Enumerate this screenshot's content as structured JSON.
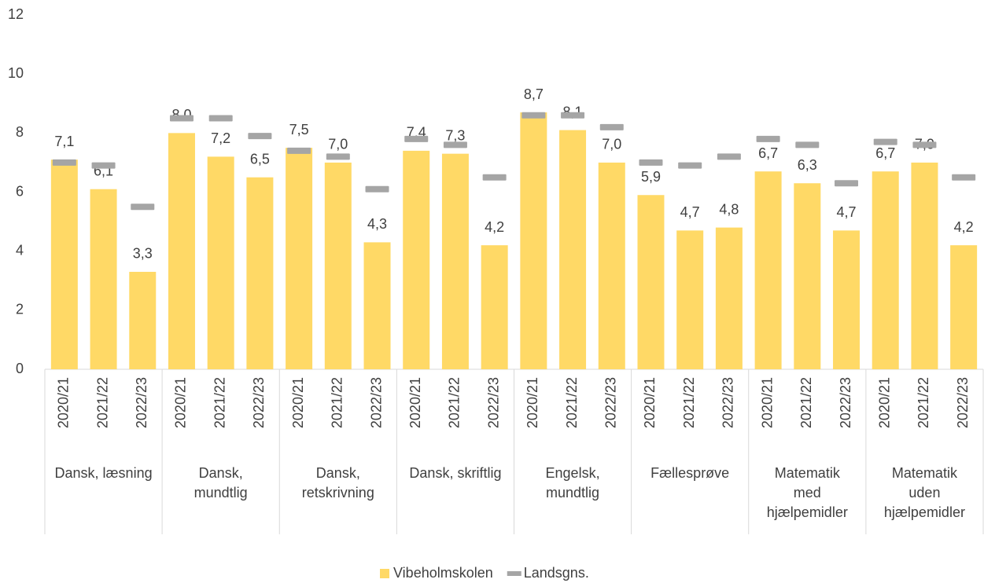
{
  "chart_data": {
    "type": "bar",
    "categories": [
      "2020/21",
      "2021/22",
      "2022/23",
      "2020/21",
      "2021/22",
      "2022/23",
      "2020/21",
      "2021/22",
      "2022/23",
      "2020/21",
      "2021/22",
      "2022/23",
      "2020/21",
      "2021/22",
      "2022/23",
      "2020/21",
      "2021/22",
      "2022/23",
      "2020/21",
      "2021/22",
      "2022/23",
      "2020/21",
      "2021/22",
      "2022/23"
    ],
    "group_labels": [
      [
        "Dansk, læsning"
      ],
      [
        "Dansk,",
        "mundtlig"
      ],
      [
        "Dansk,",
        "retskrivning"
      ],
      [
        "Dansk, skriftlig"
      ],
      [
        "Engelsk,",
        "mundtlig"
      ],
      [
        "Fællesprøve"
      ],
      [
        "Matematik",
        "med",
        "hjælpemidler"
      ],
      [
        "Matematik",
        "uden",
        "hjælpemidler"
      ]
    ],
    "series": [
      {
        "name": "Vibeholmskolen",
        "color": "#FFD966",
        "style": "bar",
        "values": [
          7.1,
          6.1,
          3.3,
          8.0,
          7.2,
          6.5,
          7.5,
          7.0,
          4.3,
          7.4,
          7.3,
          4.2,
          8.7,
          8.1,
          7.0,
          5.9,
          4.7,
          4.8,
          6.7,
          6.3,
          4.7,
          6.7,
          7.0,
          4.2
        ],
        "value_labels": [
          "7,1",
          "6,1",
          "3,3",
          "8,0",
          "7,2",
          "6,5",
          "7,5",
          "7,0",
          "4,3",
          "7,4",
          "7,3",
          "4,2",
          "8,7",
          "8,1",
          "7,0",
          "5,9",
          "4,7",
          "4,8",
          "6,7",
          "6,3",
          "4,7",
          "6,7",
          "7,0",
          "4,2"
        ]
      },
      {
        "name": "Landsgns.",
        "color": "#A5A5A5",
        "style": "dash",
        "values": [
          7.0,
          6.9,
          5.5,
          8.5,
          8.5,
          7.9,
          7.4,
          7.2,
          6.1,
          7.8,
          7.6,
          6.5,
          8.6,
          8.6,
          8.2,
          7.0,
          6.9,
          7.2,
          7.8,
          7.6,
          6.3,
          7.7,
          7.6,
          6.5
        ]
      }
    ],
    "ylim": [
      0,
      12
    ],
    "yticks": [
      0,
      2,
      4,
      6,
      8,
      10,
      12
    ],
    "grid": false,
    "legend": "bottom"
  }
}
